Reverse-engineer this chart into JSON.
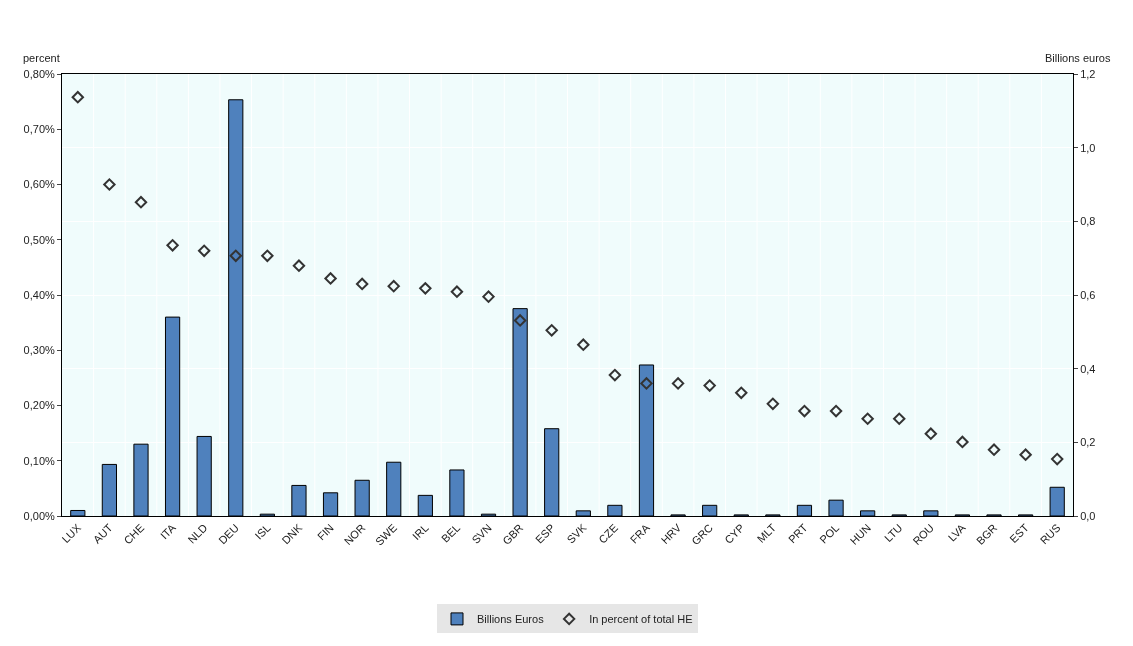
{
  "chart_data": {
    "type": "bar",
    "categories": [
      "LUX",
      "AUT",
      "CHE",
      "ITA",
      "NLD",
      "DEU",
      "ISL",
      "DNK",
      "FIN",
      "NOR",
      "SWE",
      "IRL",
      "BEL",
      "SVN",
      "GBR",
      "ESP",
      "SVK",
      "CZE",
      "FRA",
      "HRV",
      "GRC",
      "CYP",
      "MLT",
      "PRT",
      "POL",
      "HUN",
      "LTU",
      "ROU",
      "LVA",
      "BGR",
      "EST",
      "RUS"
    ],
    "series": [
      {
        "name": "Billions Euros",
        "axis": "y2",
        "color": "#4f81bd",
        "values": [
          0.015,
          0.14,
          0.195,
          0.54,
          0.216,
          1.13,
          0.005,
          0.083,
          0.063,
          0.097,
          0.146,
          0.056,
          0.125,
          0.005,
          0.563,
          0.237,
          0.014,
          0.029,
          0.41,
          0.003,
          0.029,
          0.003,
          0.003,
          0.029,
          0.043,
          0.014,
          0.003,
          0.014,
          0.003,
          0.003,
          0.003,
          0.078
        ]
      },
      {
        "name": "In percent of total HE",
        "type": "scatter",
        "axis": "y",
        "color": "#333333",
        "marker": "diamond",
        "values": [
          0.758,
          0.6,
          0.568,
          0.49,
          0.48,
          0.471,
          0.471,
          0.453,
          0.43,
          0.42,
          0.416,
          0.412,
          0.406,
          0.397,
          0.354,
          0.336,
          0.31,
          0.255,
          0.24,
          0.24,
          0.236,
          0.223,
          0.203,
          0.19,
          0.19,
          0.176,
          0.176,
          0.149,
          0.134,
          0.12,
          0.111,
          0.103
        ]
      }
    ],
    "ylabel": "percent",
    "y2label": "Billions euros",
    "ylim": [
      0,
      0.8
    ],
    "yticks": [
      {
        "value": 0,
        "label": "0,00%"
      },
      {
        "value": 0.1,
        "label": "0,10%"
      },
      {
        "value": 0.2,
        "label": "0,20%"
      },
      {
        "value": 0.3,
        "label": "0,30%"
      },
      {
        "value": 0.4,
        "label": "0,40%"
      },
      {
        "value": 0.5,
        "label": "0,50%"
      },
      {
        "value": 0.6,
        "label": "0,60%"
      },
      {
        "value": 0.7,
        "label": "0,70%"
      },
      {
        "value": 0.8,
        "label": "0,80%"
      }
    ],
    "y2lim": [
      0,
      1.2
    ],
    "y2ticks": [
      {
        "value": 0,
        "label": "0,0"
      },
      {
        "value": 0.2,
        "label": "0,2"
      },
      {
        "value": 0.4,
        "label": "0,4"
      },
      {
        "value": 0.6,
        "label": "0,6"
      },
      {
        "value": 0.8,
        "label": "0,8"
      },
      {
        "value": 1.0,
        "label": "1,0"
      },
      {
        "value": 1.2,
        "label": "1,2"
      }
    ],
    "grid": true,
    "legend": "bottom"
  }
}
